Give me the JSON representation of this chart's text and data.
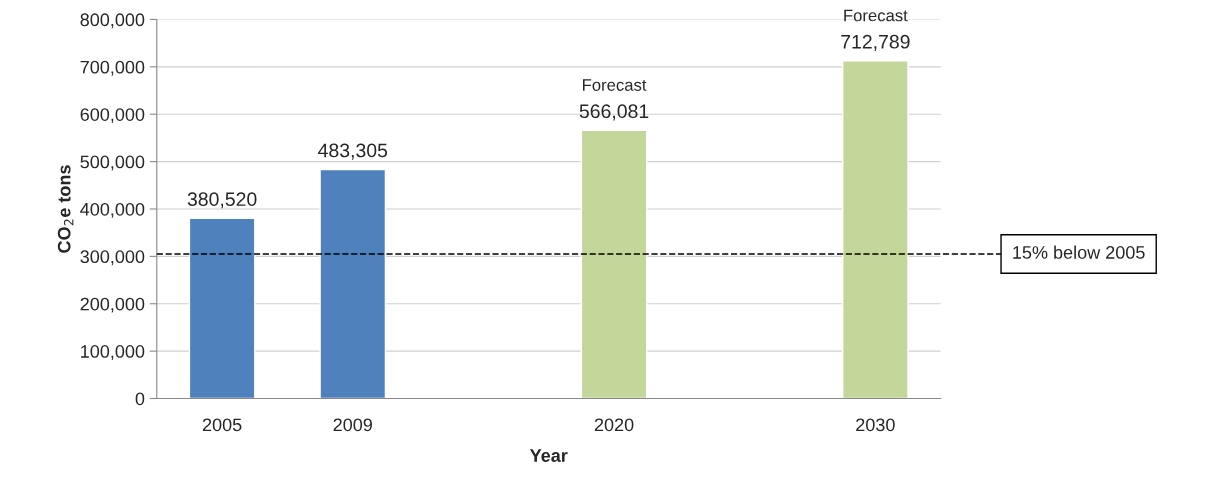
{
  "chart_data": {
    "type": "bar",
    "xlabel": "Year",
    "ylabel": "CO$_{2}$e tons",
    "categories": [
      "2005",
      "2009",
      null,
      "2020",
      null,
      "2030"
    ],
    "values": [
      380520,
      483305,
      null,
      566081,
      null,
      712789
    ],
    "colors": [
      "#4f81bd",
      "#4f81bd",
      null,
      "#c4d79b",
      null,
      "#c4d79b"
    ],
    "value_labels": [
      "380,520",
      "483,305",
      null,
      "566,081",
      null,
      "712,789"
    ],
    "annotations": [
      {
        "text": "Forecast",
        "x": "2020",
        "y": 566081
      },
      {
        "text": "Forecast",
        "x": "2030",
        "y": 712789
      }
    ],
    "ref_lines": [
      {
        "axis": "y",
        "value": 305000,
        "label": "15% below 2005",
        "color": "#000000",
        "line_style": "dashed"
      }
    ],
    "ylim": [
      0,
      800000
    ],
    "yticks": [
      {
        "value": 0,
        "label": "0"
      },
      {
        "value": 100000,
        "label": "100,000"
      },
      {
        "value": 200000,
        "label": "200,000"
      },
      {
        "value": 300000,
        "label": "300,000"
      },
      {
        "value": 400000,
        "label": "400,000"
      },
      {
        "value": 500000,
        "label": "500,000"
      },
      {
        "value": 600000,
        "label": "600,000"
      },
      {
        "value": 700000,
        "label": "700,000"
      },
      {
        "value": 800000,
        "label": "800,000"
      }
    ],
    "grid": "y",
    "legend": false
  }
}
